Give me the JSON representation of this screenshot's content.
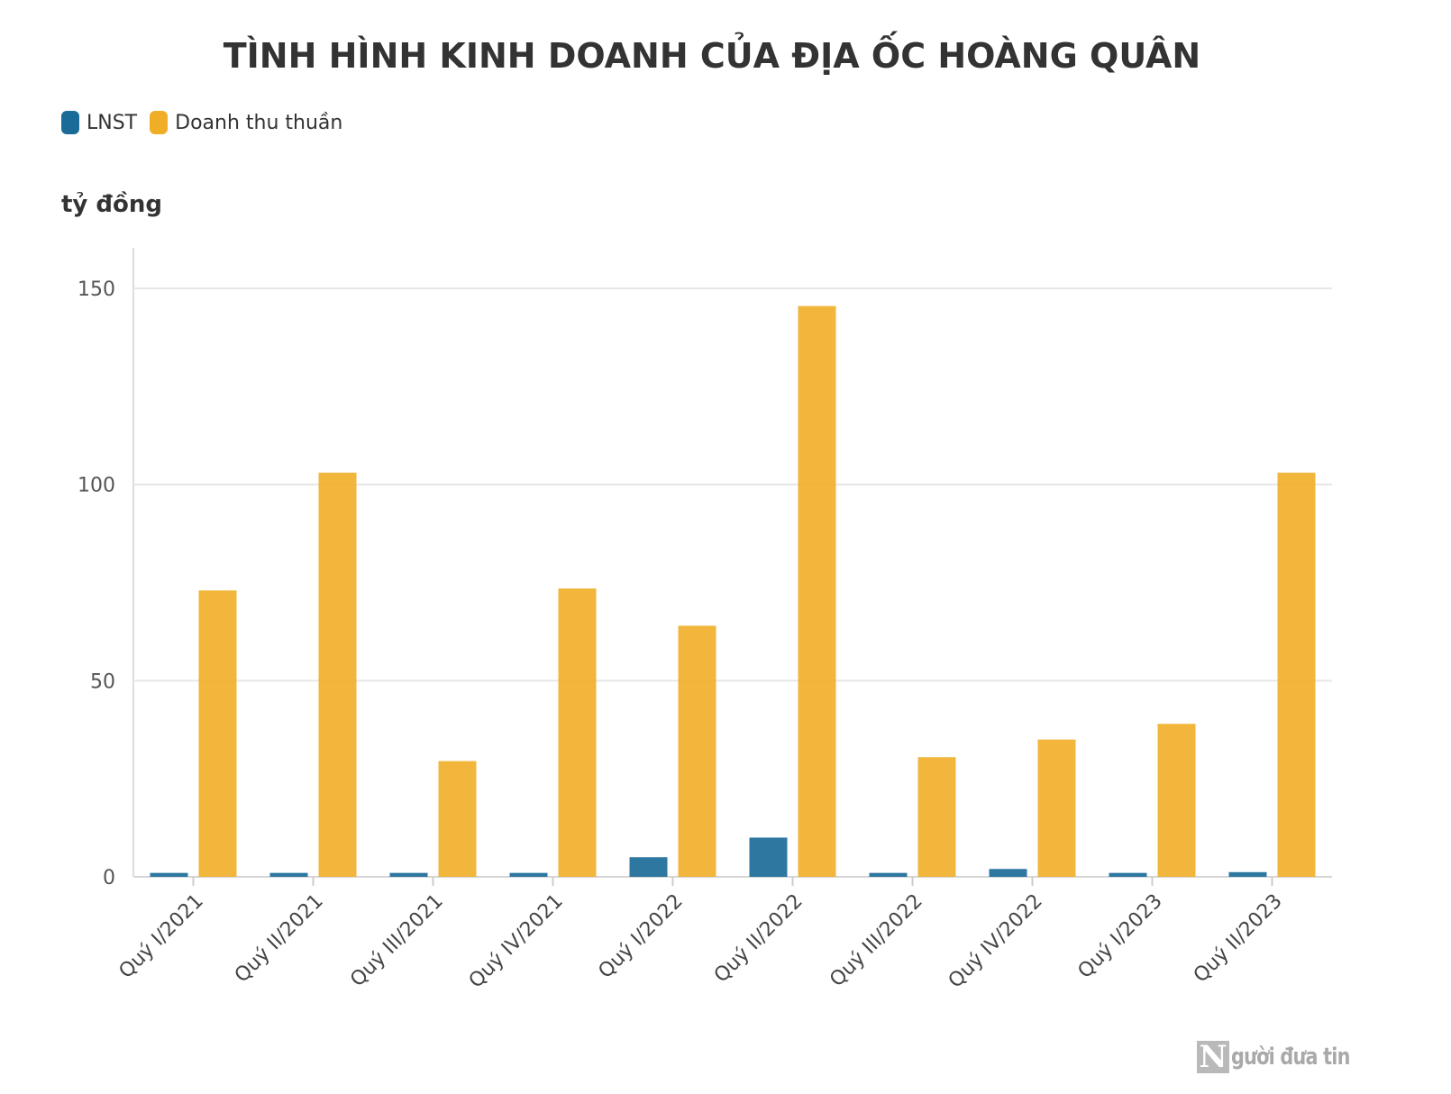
{
  "chart_data": {
    "type": "bar",
    "title": "TÌNH HÌNH KINH DOANH CỦA ĐỊA ỐC HOÀNG QUÂN",
    "ylabel": "tỷ đồng",
    "xlabel": "",
    "categories": [
      "Quý I/2021",
      "Quý II/2021",
      "Quý III/2021",
      "Quý IV/2021",
      "Quý I/2022",
      "Quý II/2022",
      "Quý III/2022",
      "Quý IV/2022",
      "Quý I/2023",
      "Quý II/2023"
    ],
    "series": [
      {
        "name": "LNST",
        "color": "#1b6b99",
        "values": [
          1,
          1,
          1,
          1,
          5,
          10,
          1,
          2,
          1,
          1.2
        ]
      },
      {
        "name": "Doanh thu thuần",
        "color": "#efae26",
        "values": [
          73,
          103,
          29.5,
          73.5,
          64,
          145.5,
          30.5,
          35,
          39,
          103
        ]
      }
    ],
    "ylim": [
      0,
      160
    ],
    "yticks": [
      0,
      50,
      100,
      150
    ],
    "grid": true,
    "legend_position": "top-left"
  },
  "watermark": {
    "text": "gười đưa tin",
    "initial": "N"
  }
}
